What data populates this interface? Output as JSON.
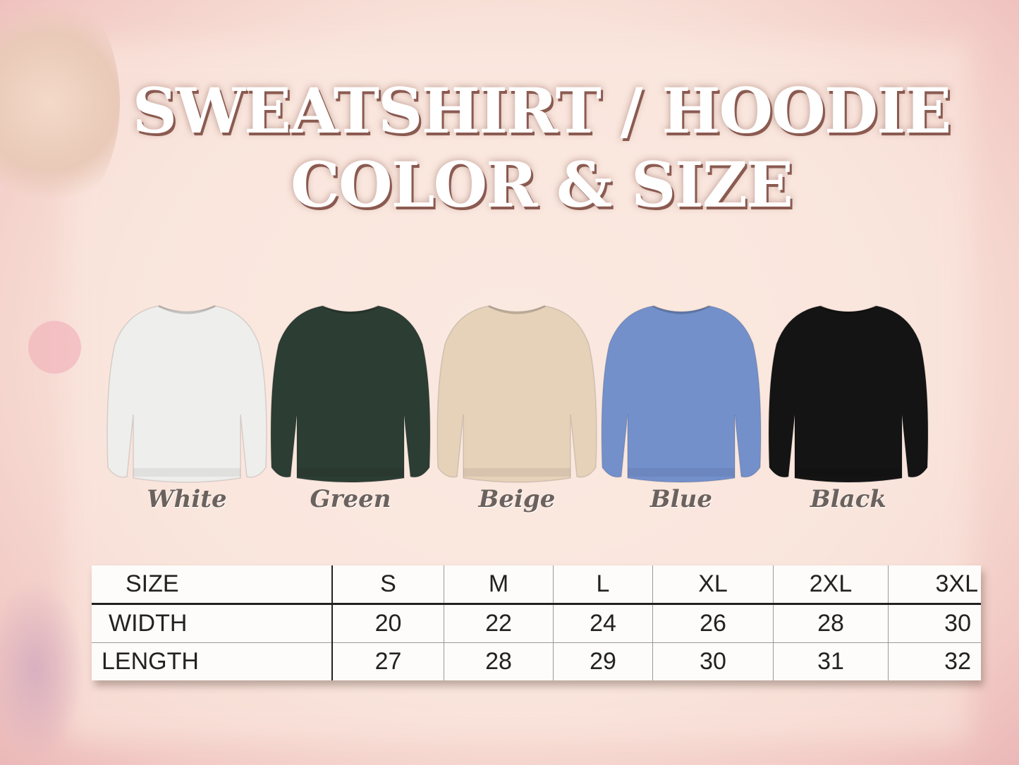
{
  "title": {
    "line1": "SWEATSHIRT / HOODIE",
    "line2": "COLOR & SIZE"
  },
  "colors": [
    {
      "label": "White",
      "hex": "#eeeeec"
    },
    {
      "label": "Green",
      "hex": "#2c3d34"
    },
    {
      "label": "Beige",
      "hex": "#e6d1b9"
    },
    {
      "label": "Blue",
      "hex": "#7390cb"
    },
    {
      "label": "Black",
      "hex": "#141414"
    }
  ],
  "size_table": {
    "header": [
      "SIZE",
      "S",
      "M",
      "L",
      "XL",
      "2XL",
      "3XL"
    ],
    "rows": [
      [
        "WIDTH",
        "20",
        "22",
        "24",
        "26",
        "28",
        "30"
      ],
      [
        "LENGTH",
        "27",
        "28",
        "29",
        "30",
        "31",
        "32"
      ]
    ]
  }
}
